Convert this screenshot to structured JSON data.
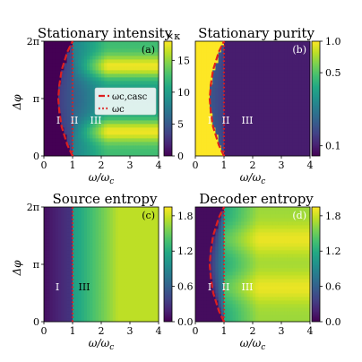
{
  "chart_data": [
    {
      "type": "heatmap",
      "title": "Stationary intensity",
      "panel_label": "(a)",
      "xlabel": "ω/ωc",
      "ylabel": "Δφ",
      "x_ticks": [
        "0",
        "1",
        "2",
        "3",
        "4"
      ],
      "y_ticks": [
        "0",
        "π",
        "2π"
      ],
      "xlim": [
        0,
        4
      ],
      "ylim": [
        0,
        6.283
      ],
      "colorbar": {
        "ticks": [
          "0",
          "5",
          "10",
          "15"
        ],
        "min": 0,
        "max": 18,
        "unit": "×κ"
      },
      "regions": [
        "I",
        "II",
        "III"
      ],
      "legend": {
        "position": "center-right",
        "entries": [
          "ωc,casc",
          "ωc"
        ]
      },
      "curves": [
        {
          "name": "ωc,casc",
          "style": "dashed",
          "color": "#dd1f1f",
          "x": [
            1.0,
            0.82,
            0.62,
            0.54,
            0.5,
            0.54,
            0.62,
            0.82,
            1.0
          ],
          "y": [
            0,
            0.6,
            1.6,
            2.4,
            3.14,
            3.9,
            4.7,
            5.7,
            6.283
          ]
        },
        {
          "name": "ωc",
          "style": "dotted",
          "color": "#dd1f1f",
          "x": [
            1.0,
            1.0
          ],
          "y": [
            0,
            6.283
          ]
        }
      ]
    },
    {
      "type": "heatmap",
      "title": "Stationary purity",
      "panel_label": "(b)",
      "xlabel": "ω/ωc",
      "ylabel": "",
      "x_ticks": [
        "0",
        "1",
        "2",
        "3",
        "4"
      ],
      "y_ticks": [],
      "xlim": [
        0,
        4
      ],
      "ylim": [
        0,
        6.283
      ],
      "colorbar": {
        "ticks": [
          "1.0",
          "0.5",
          "0.1"
        ],
        "scale": "log",
        "min": 0.08,
        "max": 1.0
      },
      "regions": [
        "I",
        "II",
        "III"
      ],
      "curves": [
        {
          "name": "ωc,casc",
          "style": "dashed",
          "color": "#dd1f1f",
          "x": [
            1.0,
            0.82,
            0.62,
            0.54,
            0.5,
            0.54,
            0.62,
            0.82,
            1.0
          ],
          "y": [
            0,
            0.6,
            1.6,
            2.4,
            3.14,
            3.9,
            4.7,
            5.7,
            6.283
          ]
        },
        {
          "name": "ωc",
          "style": "dotted",
          "color": "#dd1f1f",
          "x": [
            1.0,
            1.0
          ],
          "y": [
            0,
            6.283
          ]
        }
      ]
    },
    {
      "type": "heatmap",
      "title": "Source entropy",
      "panel_label": "(c)",
      "xlabel": "ω/ωc",
      "ylabel": "Δφ",
      "x_ticks": [
        "0",
        "1",
        "2",
        "3",
        "4"
      ],
      "y_ticks": [
        "0",
        "π",
        "2π"
      ],
      "xlim": [
        0,
        4
      ],
      "ylim": [
        0,
        6.283
      ],
      "colorbar": {
        "ticks": [
          "0.0",
          "0.6",
          "1.2",
          "1.8"
        ],
        "min": 0,
        "max": 1.95
      },
      "regions": [
        "I",
        "III"
      ],
      "curves": [
        {
          "name": "ωc",
          "style": "dotted",
          "color": "#dd1f1f",
          "x": [
            1.0,
            1.0
          ],
          "y": [
            0,
            6.283
          ]
        }
      ]
    },
    {
      "type": "heatmap",
      "title": "Decoder entropy",
      "panel_label": "(d)",
      "xlabel": "ω/ωc",
      "ylabel": "",
      "x_ticks": [
        "0",
        "1",
        "2",
        "3",
        "4"
      ],
      "y_ticks": [],
      "xlim": [
        0,
        4
      ],
      "ylim": [
        0,
        6.283
      ],
      "colorbar": {
        "ticks": [
          "0.0",
          "0.6",
          "1.2",
          "1.8"
        ],
        "min": 0,
        "max": 1.95
      },
      "regions": [
        "I",
        "II",
        "III"
      ],
      "curves": [
        {
          "name": "ωc,casc",
          "style": "dashed",
          "color": "#dd1f1f",
          "x": [
            1.0,
            0.82,
            0.62,
            0.54,
            0.5,
            0.54,
            0.62,
            0.82,
            1.0
          ],
          "y": [
            0,
            0.6,
            1.6,
            2.4,
            3.14,
            3.9,
            4.7,
            5.7,
            6.283
          ]
        },
        {
          "name": "ωc",
          "style": "dotted",
          "color": "#dd1f1f",
          "x": [
            1.0,
            1.0
          ],
          "y": [
            0,
            6.283
          ]
        }
      ]
    }
  ]
}
